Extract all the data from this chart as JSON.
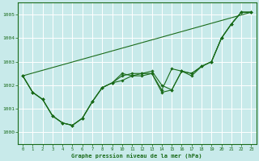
{
  "title": "Graphe pression niveau de la mer (hPa)",
  "bg_color": "#c8eaea",
  "grid_color": "#a8d8d8",
  "line_color": "#1a6b1a",
  "xlim": [
    -0.5,
    23.5
  ],
  "ylim": [
    999.5,
    1005.5
  ],
  "yticks": [
    1000,
    1001,
    1002,
    1003,
    1004,
    1005
  ],
  "xticks": [
    0,
    1,
    2,
    3,
    4,
    5,
    6,
    7,
    8,
    9,
    10,
    11,
    12,
    13,
    14,
    15,
    16,
    17,
    18,
    19,
    20,
    21,
    22,
    23
  ],
  "series": [
    {
      "x": [
        0,
        1,
        2,
        3,
        4,
        5,
        6,
        7,
        8,
        9,
        10,
        11,
        12,
        13,
        14,
        15,
        16,
        17,
        18,
        19,
        20,
        21,
        22,
        23
      ],
      "y": [
        1002.4,
        1001.7,
        1001.4,
        1000.7,
        1000.4,
        1000.3,
        1000.6,
        1001.3,
        1001.9,
        1002.1,
        1002.2,
        1002.4,
        1002.4,
        1002.5,
        1001.7,
        1001.8,
        1002.6,
        1002.4,
        1002.8,
        1003.0,
        1004.0,
        1004.6,
        1005.1,
        1005.1
      ]
    },
    {
      "x": [
        0,
        1,
        2,
        3,
        4,
        5,
        6,
        7,
        8,
        9,
        10,
        11,
        12,
        13,
        14,
        15,
        16,
        17,
        18,
        19,
        20,
        21,
        22,
        23
      ],
      "y": [
        1002.4,
        1001.7,
        1001.4,
        1000.7,
        1000.4,
        1000.3,
        1000.6,
        1001.3,
        1001.9,
        1002.1,
        1002.5,
        1002.4,
        1002.5,
        1002.6,
        1002.0,
        1001.8,
        1002.6,
        1002.5,
        1002.8,
        1003.0,
        1004.0,
        1004.6,
        1005.1,
        1005.1
      ]
    },
    {
      "x": [
        0,
        23
      ],
      "y": [
        1002.4,
        1005.1
      ]
    },
    {
      "x": [
        0,
        1,
        2,
        3,
        4,
        5,
        6,
        7,
        8,
        9,
        10,
        11,
        12,
        13,
        14,
        15,
        16,
        17,
        18,
        19,
        20,
        21,
        22,
        23
      ],
      "y": [
        1002.4,
        1001.7,
        1001.4,
        1000.7,
        1000.4,
        1000.3,
        1000.6,
        1001.3,
        1001.9,
        1002.1,
        1002.4,
        1002.5,
        1002.5,
        1002.5,
        1001.8,
        1002.7,
        1002.6,
        1002.5,
        1002.8,
        1003.0,
        1004.0,
        1004.6,
        1005.1,
        1005.1
      ]
    }
  ],
  "marker_series": [
    0,
    1,
    3
  ],
  "figsize": [
    3.2,
    2.0
  ],
  "dpi": 100
}
